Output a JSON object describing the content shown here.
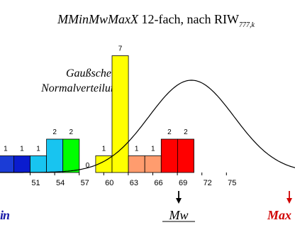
{
  "chart_data": {
    "type": "bar",
    "title_italic": "MMinMwMaxX",
    "title_rest": " 12-fach, nach RIW",
    "title_subscript": "777,k",
    "x_ticks": [
      "51",
      "54",
      "57",
      "60",
      "63",
      "66",
      "69",
      "72",
      "75"
    ],
    "bars": [
      {
        "label": "1",
        "value": 1,
        "color": "#1b3cd6"
      },
      {
        "label": "1",
        "value": 1,
        "color": "#0a1ccf"
      },
      {
        "label": "1",
        "value": 1,
        "color": "#18c4f0"
      },
      {
        "label": "2",
        "value": 2,
        "color": "#18c4f0"
      },
      {
        "label": "2",
        "value": 2,
        "color": "#00ff00"
      },
      {
        "label": "0",
        "value": 0,
        "color": "#ffffff"
      },
      {
        "label": "1",
        "value": 1,
        "color": "#ffff00"
      },
      {
        "label": "7",
        "value": 7,
        "color": "#ffff00"
      },
      {
        "label": "1",
        "value": 1,
        "color": "#ff9c6e"
      },
      {
        "label": "1",
        "value": 1,
        "color": "#ff9c6e"
      },
      {
        "label": "2",
        "value": 2,
        "color": "#ff0000"
      },
      {
        "label": "2",
        "value": 2,
        "color": "#ff0000"
      }
    ],
    "curve_label_line1": "Gaußsche",
    "curve_label_line2": "Normalverteilung",
    "markers": [
      {
        "label": "Min",
        "color": "#1a1aa8"
      },
      {
        "label": "Mw",
        "color": "#000000"
      },
      {
        "label": "Max",
        "color": "#d00000"
      }
    ]
  }
}
